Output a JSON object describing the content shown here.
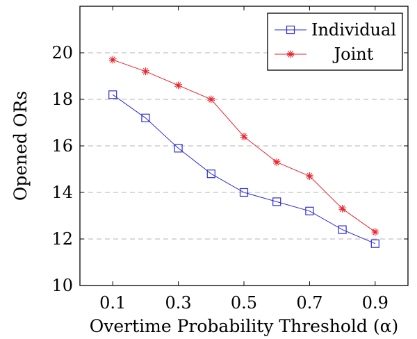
{
  "chart_data": {
    "type": "line",
    "xlabel": "Overtime Probability Threshold (α)",
    "ylabel": "Opened ORs",
    "x": [
      0.1,
      0.2,
      0.3,
      0.4,
      0.5,
      0.6,
      0.7,
      0.8,
      0.9
    ],
    "xticks": [
      0.1,
      0.3,
      0.5,
      0.7,
      0.9
    ],
    "xtick_labels": [
      "0.1",
      "0.3",
      "0.5",
      "0.7",
      "0.9"
    ],
    "xlim": [
      0.0,
      1.0
    ],
    "yticks": [
      10,
      12,
      14,
      16,
      18,
      20
    ],
    "ytick_labels": [
      "10",
      "12",
      "14",
      "16",
      "18",
      "20"
    ],
    "ylim": [
      10,
      22
    ],
    "grid": "horizontal dashed",
    "legend": "top-right",
    "series": [
      {
        "name": "Individual",
        "marker": "square",
        "color": "#2b2bd9",
        "values": [
          18.2,
          17.2,
          15.9,
          14.8,
          14.0,
          13.6,
          13.2,
          12.4,
          11.8
        ]
      },
      {
        "name": "Joint",
        "marker": "star",
        "color": "#e8242c",
        "values": [
          19.7,
          19.2,
          18.6,
          18.0,
          16.4,
          15.3,
          14.7,
          13.3,
          12.3
        ]
      }
    ]
  }
}
